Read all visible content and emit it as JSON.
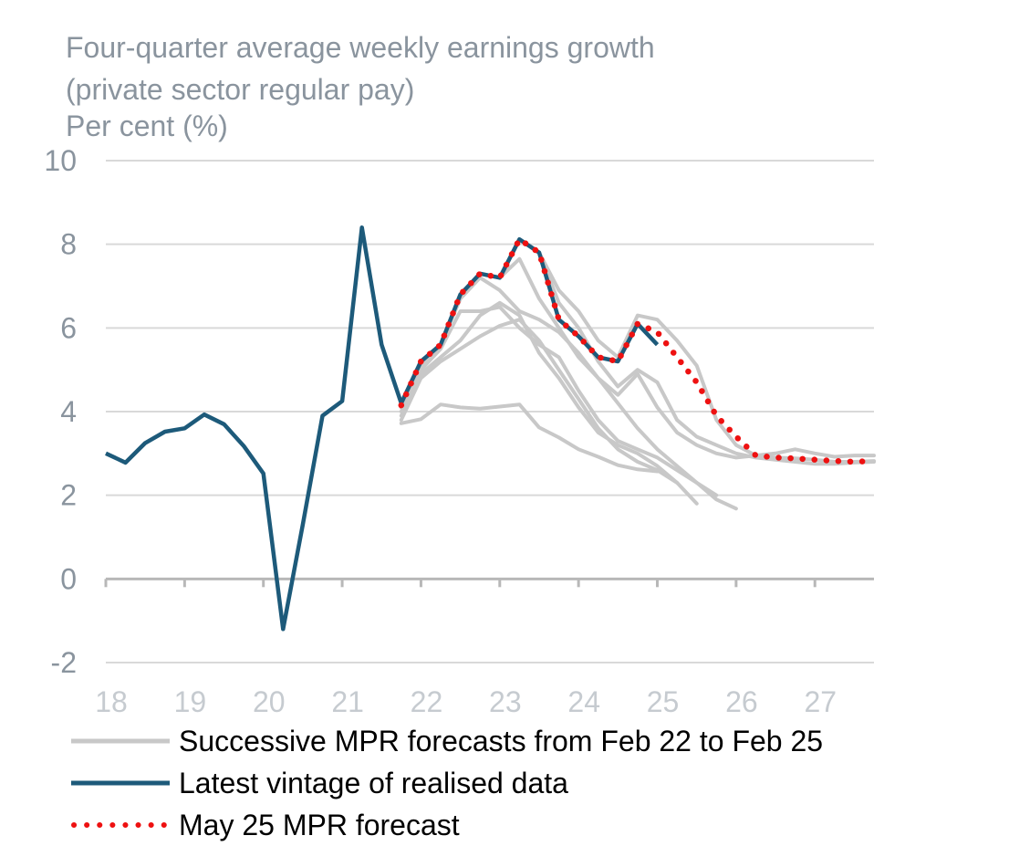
{
  "chart_data": {
    "type": "line",
    "title_lines": [
      "Four-quarter average weekly earnings growth",
      "(private sector regular pay)",
      "Per cent (%)"
    ],
    "x_ticks": [
      "18",
      "19",
      "20",
      "21",
      "22",
      "23",
      "24",
      "25",
      "26",
      "27"
    ],
    "y_ticks": [
      10,
      8,
      6,
      4,
      2,
      0,
      -2
    ],
    "xlim": [
      2018.0,
      2027.75
    ],
    "ylim": [
      -2,
      10
    ],
    "grid": true,
    "legend_position": "bottom",
    "legend": [
      "Successive MPR forecasts from Feb 22 to Feb 25",
      "Latest vintage of realised data",
      "May 25 MPR forecast"
    ],
    "colors": {
      "forecasts": "#c8c8c8",
      "realised": "#1d5a7a",
      "may25": "#ee1111",
      "axis": "#b8b8b8",
      "tick_text": "#8a949e"
    },
    "series": [
      {
        "name": "Latest vintage of realised data",
        "kind": "realised",
        "x": [
          2018.0,
          2018.25,
          2018.5,
          2018.75,
          2019.0,
          2019.25,
          2019.5,
          2019.75,
          2020.0,
          2020.25,
          2020.5,
          2020.75,
          2021.0,
          2021.25,
          2021.5,
          2021.75,
          2022.0,
          2022.25,
          2022.5,
          2022.75,
          2023.0,
          2023.25,
          2023.5,
          2023.75,
          2024.0,
          2024.25,
          2024.5,
          2024.75,
          2025.0
        ],
        "y": [
          3.0,
          2.78,
          3.25,
          3.52,
          3.6,
          3.93,
          3.7,
          3.18,
          2.52,
          -1.2,
          1.3,
          3.9,
          4.25,
          8.4,
          5.6,
          4.2,
          5.2,
          5.6,
          6.8,
          7.3,
          7.2,
          8.12,
          7.8,
          6.2,
          5.8,
          5.3,
          5.2,
          6.1,
          5.6
        ]
      },
      {
        "name": "May 25 MPR forecast",
        "kind": "may25",
        "x": [
          2021.75,
          2022.0,
          2022.25,
          2022.5,
          2022.75,
          2023.0,
          2023.25,
          2023.5,
          2023.75,
          2024.0,
          2024.25,
          2024.5,
          2024.75,
          2025.0,
          2025.25,
          2025.5,
          2025.75,
          2026.0,
          2026.25,
          2026.5,
          2026.75,
          2027.0,
          2027.25,
          2027.5,
          2027.75
        ],
        "y": [
          4.15,
          5.2,
          5.6,
          6.8,
          7.3,
          7.2,
          8.12,
          7.8,
          6.2,
          5.8,
          5.3,
          5.2,
          6.1,
          5.9,
          5.3,
          4.7,
          3.9,
          3.4,
          2.95,
          2.9,
          2.88,
          2.85,
          2.82,
          2.8,
          2.82
        ]
      },
      {
        "kind": "forecast",
        "x": [
          2021.75,
          2022.0,
          2022.25,
          2022.5,
          2022.75,
          2023.0,
          2023.25,
          2023.5,
          2023.75,
          2024.0,
          2024.25,
          2024.5,
          2024.75,
          2025.0
        ],
        "y": [
          3.72,
          3.82,
          4.17,
          4.1,
          4.07,
          4.12,
          4.17,
          3.62,
          3.38,
          3.1,
          2.92,
          2.72,
          2.62,
          2.57
        ]
      },
      {
        "kind": "forecast",
        "x": [
          2021.75,
          2022.0,
          2022.25,
          2022.5,
          2022.75,
          2023.0,
          2023.25,
          2023.5,
          2023.75,
          2024.0,
          2024.25,
          2024.5,
          2024.75,
          2025.0,
          2025.25
        ],
        "y": [
          3.8,
          4.8,
          5.2,
          5.5,
          5.8,
          6.05,
          6.2,
          5.7,
          5.0,
          4.3,
          3.6,
          3.1,
          2.8,
          2.6,
          2.3
        ]
      },
      {
        "kind": "forecast",
        "x": [
          2021.75,
          2022.0,
          2022.25,
          2022.5,
          2022.75,
          2023.0,
          2023.25,
          2023.5,
          2023.75,
          2024.0,
          2024.25,
          2024.5,
          2024.75,
          2025.0,
          2025.25,
          2025.5
        ],
        "y": [
          3.9,
          4.9,
          5.3,
          5.7,
          6.3,
          6.6,
          6.3,
          5.4,
          4.8,
          4.1,
          3.5,
          3.2,
          3.0,
          2.7,
          2.3,
          1.8
        ]
      },
      {
        "kind": "forecast",
        "x": [
          2021.75,
          2022.0,
          2022.25,
          2022.5,
          2022.75,
          2023.0,
          2023.25,
          2023.5,
          2023.75,
          2024.0,
          2024.25,
          2024.5,
          2024.75,
          2025.0,
          2025.25,
          2025.5,
          2025.75
        ],
        "y": [
          4.0,
          5.0,
          5.5,
          6.4,
          6.4,
          6.5,
          6.0,
          5.6,
          5.3,
          4.5,
          3.8,
          3.3,
          3.1,
          2.9,
          2.6,
          2.3,
          2.0
        ]
      },
      {
        "kind": "forecast",
        "x": [
          2021.75,
          2022.0,
          2022.25,
          2022.5,
          2022.75,
          2023.0,
          2023.25,
          2023.5,
          2023.75,
          2024.0,
          2024.25,
          2024.5,
          2024.75,
          2025.0,
          2025.25,
          2025.5,
          2025.75,
          2026.0
        ],
        "y": [
          4.1,
          5.1,
          5.6,
          6.7,
          7.2,
          6.9,
          6.4,
          6.2,
          5.9,
          5.4,
          4.8,
          4.2,
          3.6,
          3.1,
          2.7,
          2.3,
          1.9,
          1.68
        ]
      },
      {
        "kind": "forecast",
        "x": [
          2021.75,
          2022.0,
          2022.25,
          2022.5,
          2022.75,
          2023.0,
          2023.25,
          2023.5,
          2023.75,
          2024.0,
          2024.25,
          2024.5,
          2024.75,
          2025.0,
          2025.25,
          2025.5,
          2025.75,
          2026.0,
          2026.25,
          2026.5,
          2026.75,
          2027.0,
          2027.25,
          2027.5,
          2027.75
        ],
        "y": [
          4.15,
          5.2,
          5.6,
          6.8,
          7.3,
          7.2,
          7.65,
          6.7,
          6.0,
          5.3,
          4.8,
          4.4,
          4.9,
          4.1,
          3.5,
          3.2,
          3.0,
          2.9,
          2.95,
          3.0,
          3.1,
          3.0,
          2.92,
          2.95,
          2.95
        ]
      },
      {
        "kind": "forecast",
        "x": [
          2021.75,
          2022.0,
          2022.25,
          2022.5,
          2022.75,
          2023.0,
          2023.25,
          2023.5,
          2023.75,
          2024.0,
          2024.25,
          2024.5,
          2024.75,
          2025.0,
          2025.25,
          2025.5,
          2025.75,
          2026.0,
          2026.25,
          2026.5,
          2026.75,
          2027.0,
          2027.25,
          2027.5,
          2027.75
        ],
        "y": [
          4.15,
          5.2,
          5.6,
          6.8,
          7.3,
          7.2,
          8.12,
          7.8,
          6.6,
          6.0,
          5.2,
          4.6,
          5.0,
          4.7,
          3.8,
          3.4,
          3.2,
          3.0,
          2.9,
          2.85,
          2.8,
          2.75,
          2.75,
          2.78,
          2.8
        ]
      },
      {
        "kind": "forecast",
        "x": [
          2021.75,
          2022.0,
          2022.25,
          2022.5,
          2022.75,
          2023.0,
          2023.25,
          2023.5,
          2023.75,
          2024.0,
          2024.25,
          2024.5,
          2024.75,
          2025.0,
          2025.25,
          2025.5,
          2025.75,
          2026.0,
          2026.25,
          2026.5,
          2026.75,
          2027.0,
          2027.25,
          2027.5,
          2027.75
        ],
        "y": [
          4.15,
          5.2,
          5.6,
          6.8,
          7.3,
          7.2,
          8.12,
          7.8,
          6.9,
          6.4,
          5.7,
          5.3,
          6.3,
          6.2,
          5.7,
          5.1,
          3.8,
          3.2,
          2.95,
          2.9,
          2.88,
          2.85,
          2.8,
          2.8,
          2.82
        ]
      }
    ]
  }
}
